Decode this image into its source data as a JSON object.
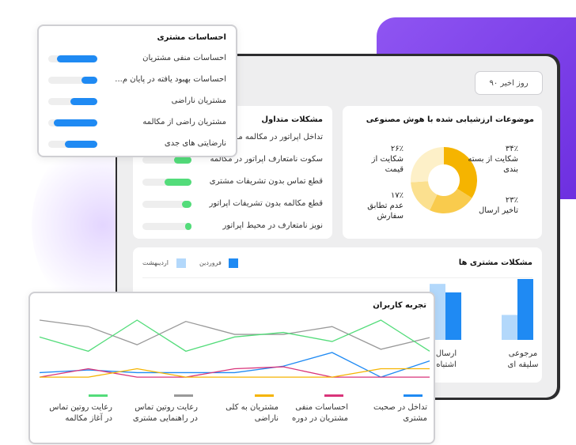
{
  "date_filter": {
    "label": "۹۰ روز اخیر"
  },
  "topics": {
    "title": "موضوعات ارزشیابی شده با هوش مصنوعی",
    "slices": [
      {
        "pct": "۳۴٪",
        "label": "شکایت از بسته بندی",
        "value": 34,
        "color": "#f5b400"
      },
      {
        "pct": "۲۳٪",
        "label": "تاخیر ارسال",
        "value": 23,
        "color": "#f9cb4d"
      },
      {
        "pct": "۱۷٪",
        "label": "عدم تطابق سفارش",
        "value": 17,
        "color": "#fbe08f"
      },
      {
        "pct": "۲۶٪",
        "label": "شکایت از قیمت",
        "value": 26,
        "color": "#fdf0c8"
      }
    ]
  },
  "common_issues": {
    "title": "مشکلات متداول",
    "items": [
      {
        "label": "تداخل اپراتور در مکالمه مش",
        "value": 0.5
      },
      {
        "label": "سکوت نامتعارف اپراتور در مکالمه",
        "value": 0.35
      },
      {
        "label": "قطع تماس بدون تشریفات مشتری",
        "value": 0.55
      },
      {
        "label": "قطع مکالمه بدون تشریفات اپراتور",
        "value": 0.2
      },
      {
        "label": "نویز نامتعارف در محیط اپراتور",
        "value": 0.1
      }
    ]
  },
  "customer_issues": {
    "title": "مشکلات مشتری ها",
    "legend": [
      {
        "label": "فروردین",
        "color": "#1f8af3"
      },
      {
        "label": "اردیبهشت",
        "color": "#b3d8fb"
      }
    ],
    "categories": [
      {
        "label": "مرجوعی سلیقه ای"
      },
      {
        "label": "ارسال اشتباه"
      }
    ]
  },
  "chart_data": {
    "type": "bar",
    "categories": [
      "مرجوعی سلیقه ای",
      "ارسال اشتباه"
    ],
    "series": [
      {
        "name": "فروردین",
        "values": [
          100,
          78
        ]
      },
      {
        "name": "اردیبهشت",
        "values": [
          41,
          92
        ]
      }
    ]
  },
  "sentiment": {
    "title": "احساسات مشتری",
    "items": [
      {
        "label": "احساسات منفی مشتریان",
        "value": 0.88
      },
      {
        "label": "احساسات بهبود یافته در پایان م...",
        "value": 0.35
      },
      {
        "label": "مشتریان ناراضی",
        "value": 0.58
      },
      {
        "label": "مشتریان راضی از مکالمه",
        "value": 0.95
      },
      {
        "label": "نارضایتی های جدی",
        "value": 0.7
      }
    ]
  },
  "user_experience": {
    "title": "تجربه کاربران",
    "series": [
      {
        "label": "تداخل در صحبت مشتری",
        "color": "#1f8af3",
        "values": [
          0.19,
          0.23,
          0.19,
          0.19,
          0.19,
          0.29,
          0.5,
          0.12,
          0.37
        ]
      },
      {
        "label": "احساسات منفی مشتریان در دوره",
        "color": "#d9347a",
        "values": [
          0.12,
          0.25,
          0.12,
          0.12,
          0.25,
          0.28,
          0.12,
          0.12,
          0.12
        ]
      },
      {
        "label": "مشتریان به کلی ناراضی",
        "color": "#f5b400",
        "values": [
          0.12,
          0.12,
          0.25,
          0.12,
          0.12,
          0.12,
          0.12,
          0.25,
          0.25
        ]
      },
      {
        "label": "رعایت روتین تماس در راهنمایی مشتری",
        "color": "#999999",
        "values": [
          1.0,
          0.9,
          0.62,
          0.98,
          0.78,
          0.78,
          0.9,
          0.55,
          0.73
        ]
      },
      {
        "label": "رعایت روتین تماس در آغاز مکالمه",
        "color": "#53dc7a",
        "values": [
          0.74,
          0.52,
          1.0,
          0.52,
          0.74,
          0.81,
          0.67,
          1.0,
          0.52
        ]
      }
    ]
  }
}
